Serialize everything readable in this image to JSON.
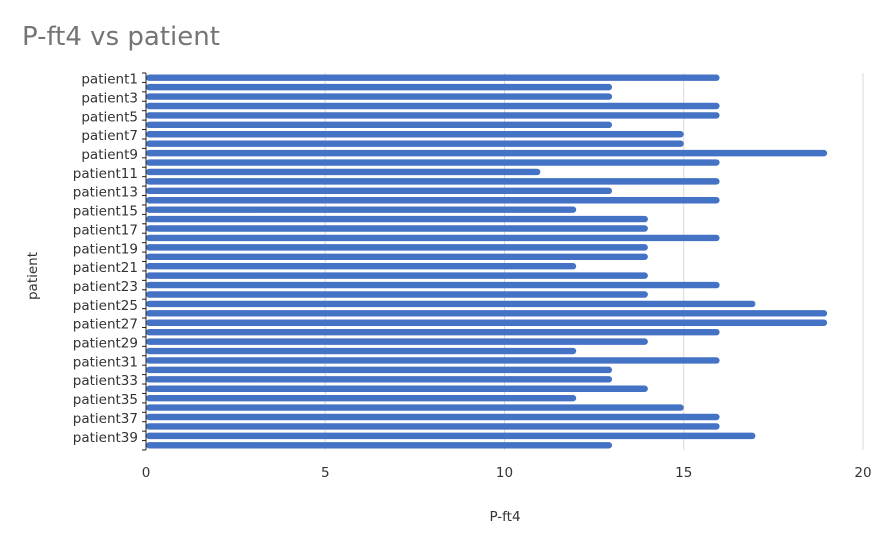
{
  "chart_data": {
    "type": "bar",
    "orientation": "horizontal",
    "title": "P-ft4 vs patient",
    "xlabel": "P-ft4",
    "ylabel": "patient",
    "xlim": [
      0,
      20
    ],
    "x_ticks": [
      0,
      5,
      10,
      15,
      20
    ],
    "grid": true,
    "bar_color": "#4472C4",
    "categories": [
      "patient1",
      "patient2",
      "patient3",
      "patient4",
      "patient5",
      "patient6",
      "patient7",
      "patient8",
      "patient9",
      "patient10",
      "patient11",
      "patient12",
      "patient13",
      "patient14",
      "patient15",
      "patient16",
      "patient17",
      "patient18",
      "patient19",
      "patient20",
      "patient21",
      "patient22",
      "patient23",
      "patient24",
      "patient25",
      "patient26",
      "patient27",
      "patient28",
      "patient29",
      "patient30",
      "patient31",
      "patient32",
      "patient33",
      "patient34",
      "patient35",
      "patient36",
      "patient37",
      "patient38",
      "patient39",
      "patient40"
    ],
    "visible_category_labels": [
      "patient1",
      "patient3",
      "patient5",
      "patient7",
      "patient9",
      "patient11",
      "patient13",
      "patient15",
      "patient17",
      "patient19",
      "patient21",
      "patient23",
      "patient25",
      "patient27",
      "patient29",
      "patient31",
      "patient33",
      "patient35",
      "patient37",
      "patient39"
    ],
    "values": [
      16,
      13,
      13,
      16,
      16,
      13,
      15,
      15,
      19,
      16,
      11,
      16,
      13,
      16,
      12,
      14,
      14,
      16,
      14,
      14,
      12,
      14,
      16,
      14,
      17,
      19,
      19,
      16,
      14,
      12,
      16,
      13,
      13,
      14,
      12,
      15,
      16,
      16,
      17,
      13
    ]
  }
}
